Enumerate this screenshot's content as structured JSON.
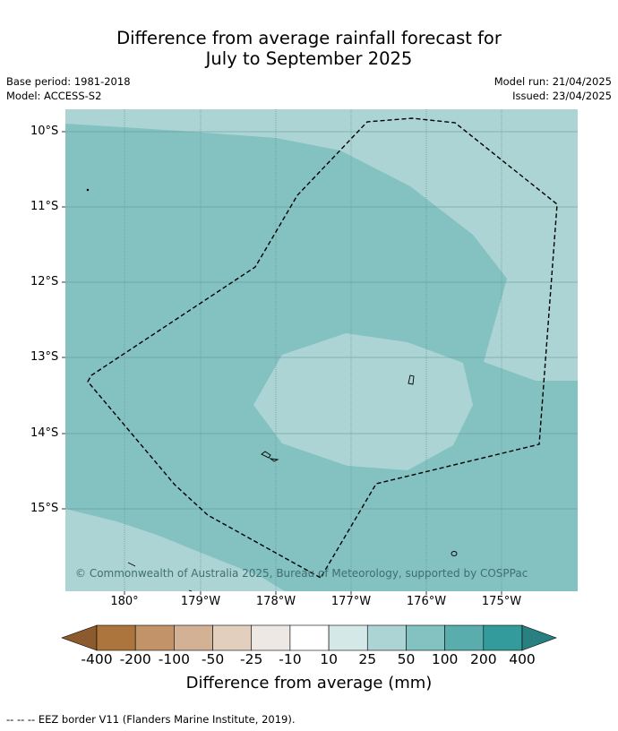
{
  "title_line1": "Difference from average rainfall forecast for",
  "title_line2": "July to September 2025",
  "meta_left": {
    "base_period": "Base period: 1981-2018",
    "model": "Model: ACCESS-S2"
  },
  "meta_right": {
    "model_run": "Model run: 21/04/2025",
    "issued": "Issued: 23/04/2025"
  },
  "latitude_labels": [
    "10°S",
    "11°S",
    "12°S",
    "13°S",
    "14°S",
    "15°S"
  ],
  "longitude_labels": [
    "180°",
    "179°W",
    "178°W",
    "177°W",
    "176°W",
    "175°W"
  ],
  "copyright": "© Commonwealth of Australia 2025, Bureau of Meteorology, supported by COSPPac",
  "colorbar": {
    "title": "Difference from average (mm)",
    "labels": [
      "-400",
      "-200",
      "-100",
      "-50",
      "-25",
      "-10",
      "10",
      "25",
      "50",
      "100",
      "200",
      "400"
    ],
    "colors": [
      "#8c5a2c",
      "#ab753d",
      "#c29369",
      "#d3b195",
      "#e3cfbd",
      "#ede8e4",
      "#ffffff",
      "#d5e8e8",
      "#acd4d4",
      "#84c1c1",
      "#5aadad",
      "#339b9b",
      "#2a8080"
    ]
  },
  "legend": {
    "eez": "--  --  -- EEZ border V11 (Flanders Marine Institute, 2019)."
  },
  "map_colors": {
    "class_25_50": "#acd4d4",
    "class_50_100": "#84c1c1",
    "grid": "#5f8f8f",
    "eez": "#000000"
  }
}
